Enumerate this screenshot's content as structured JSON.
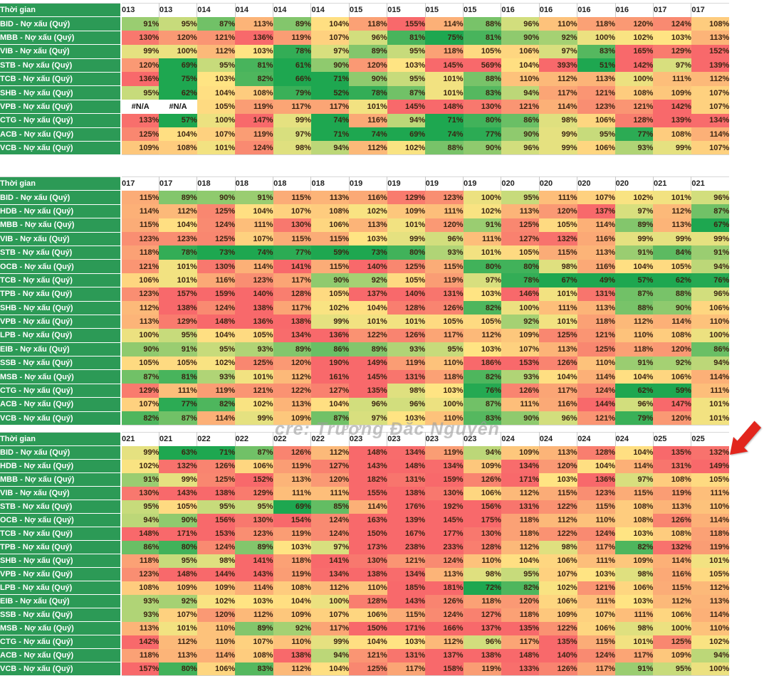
{
  "watermark": {
    "text": "cre: Trương Đắc Nguyên",
    "color": "rgba(158,158,158,0.62)"
  },
  "annotation_arrow": {
    "color": "#e2261d"
  },
  "colors": {
    "label_bg": "#2c9a56",
    "label_text": "#ffffff",
    "value_text": "#3b2412",
    "header_text": "#1f1f1f",
    "na_bg": "#ffffff"
  },
  "heat_scale": {
    "stops": [
      [
        75,
        "#1ea750"
      ],
      [
        88,
        "#78c369"
      ],
      [
        96,
        "#d2de7d"
      ],
      [
        103,
        "#ffe483"
      ],
      [
        113,
        "#fcb478"
      ],
      [
        124,
        "#f98a71"
      ],
      [
        135,
        "#f8696b"
      ]
    ]
  },
  "chart_data": [
    {
      "type": "heatmap",
      "corner_label": "Thời gian",
      "columns": [
        "013",
        "013",
        "014",
        "014",
        "014",
        "014",
        "015",
        "015",
        "015",
        "015",
        "016",
        "016",
        "016",
        "016",
        "017",
        "017"
      ],
      "rows": [
        {
          "label": "BID - Nợ xấu (Quý)",
          "values": [
            "91%",
            "95%",
            "87%",
            "113%",
            "89%",
            "104%",
            "118%",
            "155%",
            "114%",
            "88%",
            "96%",
            "110%",
            "118%",
            "120%",
            "124%",
            "108%"
          ]
        },
        {
          "label": "MBB - Nợ xấu (Quý)",
          "values": [
            "130%",
            "120%",
            "121%",
            "136%",
            "119%",
            "107%",
            "96%",
            "81%",
            "75%",
            "81%",
            "90%",
            "92%",
            "100%",
            "102%",
            "103%",
            "113%"
          ]
        },
        {
          "label": "VIB - Nợ xấu (Quý)",
          "values": [
            "99%",
            "100%",
            "112%",
            "103%",
            "78%",
            "97%",
            "89%",
            "95%",
            "118%",
            "105%",
            "106%",
            "97%",
            "83%",
            "165%",
            "129%",
            "152%"
          ]
        },
        {
          "label": "STB - Nợ xấu (Quý)",
          "values": [
            "120%",
            "69%",
            "95%",
            "81%",
            "61%",
            "90%",
            "120%",
            "103%",
            "145%",
            "569%",
            "104%",
            "393%",
            "51%",
            "142%",
            "97%",
            "139%"
          ]
        },
        {
          "label": "TCB - Nợ xấu (Quý)",
          "values": [
            "136%",
            "75%",
            "103%",
            "82%",
            "66%",
            "71%",
            "90%",
            "95%",
            "101%",
            "88%",
            "110%",
            "112%",
            "113%",
            "100%",
            "111%",
            "112%"
          ]
        },
        {
          "label": "SHB - Nợ xấu (Quý)",
          "values": [
            "95%",
            "62%",
            "104%",
            "108%",
            "79%",
            "52%",
            "78%",
            "87%",
            "101%",
            "83%",
            "94%",
            "117%",
            "121%",
            "108%",
            "109%",
            "107%"
          ]
        },
        {
          "label": "VPB - Nợ xấu (Quý)",
          "values": [
            "#N/A",
            "#N/A",
            "105%",
            "119%",
            "117%",
            "117%",
            "101%",
            "145%",
            "148%",
            "130%",
            "121%",
            "114%",
            "123%",
            "121%",
            "142%",
            "107%"
          ]
        },
        {
          "label": "CTG - Nợ xấu (Quý)",
          "values": [
            "133%",
            "57%",
            "100%",
            "147%",
            "99%",
            "74%",
            "116%",
            "94%",
            "71%",
            "80%",
            "86%",
            "98%",
            "106%",
            "128%",
            "139%",
            "134%"
          ]
        },
        {
          "label": "ACB - Nợ xấu (Quý)",
          "values": [
            "125%",
            "104%",
            "107%",
            "119%",
            "97%",
            "71%",
            "74%",
            "69%",
            "74%",
            "77%",
            "90%",
            "99%",
            "95%",
            "77%",
            "108%",
            "114%"
          ]
        },
        {
          "label": "VCB - Nợ xấu (Quý)",
          "values": [
            "109%",
            "108%",
            "101%",
            "124%",
            "98%",
            "94%",
            "112%",
            "102%",
            "88%",
            "90%",
            "96%",
            "99%",
            "106%",
            "93%",
            "99%",
            "107%"
          ]
        }
      ]
    },
    {
      "type": "heatmap",
      "corner_label": "Thời gian",
      "columns": [
        "017",
        "017",
        "018",
        "018",
        "018",
        "018",
        "019",
        "019",
        "019",
        "019",
        "020",
        "020",
        "020",
        "020",
        "021",
        "021"
      ],
      "rows": [
        {
          "label": "BID - Nợ xấu (Quý)",
          "values": [
            "115%",
            "89%",
            "90%",
            "91%",
            "115%",
            "113%",
            "116%",
            "129%",
            "123%",
            "100%",
            "95%",
            "111%",
            "107%",
            "102%",
            "101%",
            "96%"
          ]
        },
        {
          "label": "HDB - Nợ xấu (Quý)",
          "values": [
            "114%",
            "112%",
            "125%",
            "104%",
            "107%",
            "108%",
            "102%",
            "109%",
            "111%",
            "102%",
            "113%",
            "120%",
            "137%",
            "97%",
            "112%",
            "87%"
          ]
        },
        {
          "label": "MBB - Nợ xấu (Quý)",
          "values": [
            "115%",
            "104%",
            "124%",
            "111%",
            "130%",
            "106%",
            "113%",
            "101%",
            "120%",
            "91%",
            "125%",
            "105%",
            "114%",
            "89%",
            "113%",
            "67%"
          ]
        },
        {
          "label": "VIB - Nợ xấu (Quý)",
          "values": [
            "123%",
            "123%",
            "125%",
            "107%",
            "115%",
            "115%",
            "103%",
            "99%",
            "96%",
            "111%",
            "127%",
            "132%",
            "116%",
            "99%",
            "99%",
            "99%"
          ]
        },
        {
          "label": "STB - Nợ xấu (Quý)",
          "values": [
            "118%",
            "78%",
            "73%",
            "74%",
            "77%",
            "59%",
            "73%",
            "80%",
            "93%",
            "101%",
            "105%",
            "115%",
            "113%",
            "91%",
            "84%",
            "91%"
          ]
        },
        {
          "label": "OCB - Nợ xấu (Quý)",
          "values": [
            "121%",
            "101%",
            "130%",
            "114%",
            "141%",
            "115%",
            "140%",
            "125%",
            "115%",
            "80%",
            "80%",
            "98%",
            "116%",
            "104%",
            "105%",
            "94%"
          ]
        },
        {
          "label": "TCB - Nợ xấu (Quý)",
          "values": [
            "106%",
            "101%",
            "116%",
            "123%",
            "117%",
            "90%",
            "92%",
            "105%",
            "119%",
            "97%",
            "78%",
            "67%",
            "49%",
            "57%",
            "62%",
            "76%"
          ]
        },
        {
          "label": "TPB - Nợ xấu (Quý)",
          "values": [
            "123%",
            "157%",
            "159%",
            "140%",
            "128%",
            "105%",
            "137%",
            "140%",
            "131%",
            "103%",
            "146%",
            "101%",
            "131%",
            "87%",
            "88%",
            "96%"
          ]
        },
        {
          "label": "SHB - Nợ xấu (Quý)",
          "values": [
            "112%",
            "138%",
            "124%",
            "138%",
            "117%",
            "102%",
            "104%",
            "128%",
            "126%",
            "82%",
            "100%",
            "111%",
            "113%",
            "88%",
            "90%",
            "106%"
          ]
        },
        {
          "label": "VPB - Nợ xấu (Quý)",
          "values": [
            "113%",
            "129%",
            "148%",
            "136%",
            "138%",
            "99%",
            "101%",
            "101%",
            "105%",
            "105%",
            "92%",
            "101%",
            "118%",
            "112%",
            "114%",
            "110%"
          ]
        },
        {
          "label": "LPB - Nợ xấu (Quý)",
          "values": [
            "100%",
            "95%",
            "104%",
            "105%",
            "134%",
            "136%",
            "122%",
            "126%",
            "117%",
            "112%",
            "109%",
            "125%",
            "121%",
            "110%",
            "108%",
            "100%"
          ]
        },
        {
          "label": "EIB - Nợ xấu (Quý)",
          "values": [
            "90%",
            "91%",
            "95%",
            "93%",
            "89%",
            "86%",
            "89%",
            "93%",
            "95%",
            "103%",
            "107%",
            "113%",
            "125%",
            "118%",
            "120%",
            "86%"
          ]
        },
        {
          "label": "SSB - Nợ xấu (Quý)",
          "values": [
            "105%",
            "105%",
            "102%",
            "125%",
            "120%",
            "190%",
            "149%",
            "119%",
            "110%",
            "186%",
            "153%",
            "126%",
            "110%",
            "91%",
            "92%",
            "94%"
          ]
        },
        {
          "label": "MSB - Nợ xấu (Quý)",
          "values": [
            "87%",
            "81%",
            "93%",
            "101%",
            "112%",
            "161%",
            "145%",
            "131%",
            "118%",
            "82%",
            "93%",
            "104%",
            "114%",
            "104%",
            "106%",
            "114%"
          ]
        },
        {
          "label": "CTG - Nợ xấu (Quý)",
          "values": [
            "129%",
            "111%",
            "119%",
            "121%",
            "122%",
            "127%",
            "135%",
            "98%",
            "103%",
            "76%",
            "126%",
            "117%",
            "124%",
            "62%",
            "59%",
            "111%"
          ]
        },
        {
          "label": "ACB - Nợ xấu (Quý)",
          "values": [
            "107%",
            "77%",
            "82%",
            "102%",
            "113%",
            "104%",
            "96%",
            "96%",
            "100%",
            "87%",
            "111%",
            "116%",
            "144%",
            "96%",
            "147%",
            "101%"
          ]
        },
        {
          "label": "VCB - Nợ xấu (Quý)",
          "values": [
            "82%",
            "87%",
            "114%",
            "99%",
            "109%",
            "87%",
            "97%",
            "103%",
            "110%",
            "83%",
            "90%",
            "96%",
            "121%",
            "79%",
            "120%",
            "101%"
          ]
        }
      ]
    },
    {
      "type": "heatmap",
      "corner_label": "Thời gian",
      "columns": [
        "021",
        "021",
        "022",
        "022",
        "022",
        "022",
        "023",
        "023",
        "023",
        "023",
        "024",
        "024",
        "024",
        "024",
        "025",
        "025"
      ],
      "rows": [
        {
          "label": "BID - Nợ xấu (Quý)",
          "values": [
            "99%",
            "63%",
            "71%",
            "87%",
            "126%",
            "112%",
            "148%",
            "134%",
            "119%",
            "94%",
            "109%",
            "113%",
            "128%",
            "104%",
            "135%",
            "132%"
          ]
        },
        {
          "label": "HDB - Nợ xấu (Quý)",
          "values": [
            "102%",
            "132%",
            "126%",
            "106%",
            "119%",
            "127%",
            "143%",
            "148%",
            "134%",
            "109%",
            "134%",
            "120%",
            "104%",
            "114%",
            "131%",
            "149%"
          ]
        },
        {
          "label": "MBB - Nợ xấu (Quý)",
          "values": [
            "91%",
            "99%",
            "125%",
            "152%",
            "113%",
            "120%",
            "182%",
            "131%",
            "159%",
            "126%",
            "171%",
            "103%",
            "136%",
            "97%",
            "108%",
            "105%"
          ]
        },
        {
          "label": "VIB - Nợ xấu (Quý)",
          "values": [
            "130%",
            "143%",
            "138%",
            "129%",
            "111%",
            "111%",
            "155%",
            "138%",
            "130%",
            "106%",
            "112%",
            "115%",
            "123%",
            "115%",
            "119%",
            "111%"
          ]
        },
        {
          "label": "STB - Nợ xấu (Quý)",
          "values": [
            "95%",
            "105%",
            "95%",
            "95%",
            "69%",
            "85%",
            "114%",
            "176%",
            "192%",
            "156%",
            "131%",
            "122%",
            "115%",
            "108%",
            "113%",
            "110%"
          ]
        },
        {
          "label": "OCB - Nợ xấu (Quý)",
          "values": [
            "94%",
            "90%",
            "156%",
            "130%",
            "154%",
            "124%",
            "163%",
            "139%",
            "145%",
            "175%",
            "118%",
            "112%",
            "110%",
            "108%",
            "126%",
            "114%"
          ]
        },
        {
          "label": "TCB - Nợ xấu (Quý)",
          "values": [
            "148%",
            "171%",
            "153%",
            "123%",
            "119%",
            "124%",
            "150%",
            "167%",
            "177%",
            "130%",
            "118%",
            "122%",
            "124%",
            "103%",
            "108%",
            "118%"
          ]
        },
        {
          "label": "TPB - Nợ xấu (Quý)",
          "values": [
            "86%",
            "80%",
            "124%",
            "89%",
            "103%",
            "97%",
            "173%",
            "238%",
            "233%",
            "128%",
            "112%",
            "98%",
            "117%",
            "82%",
            "132%",
            "119%"
          ]
        },
        {
          "label": "SHB - Nợ xấu (Quý)",
          "values": [
            "118%",
            "95%",
            "98%",
            "141%",
            "118%",
            "141%",
            "130%",
            "121%",
            "124%",
            "110%",
            "104%",
            "106%",
            "111%",
            "109%",
            "114%",
            "101%"
          ]
        },
        {
          "label": "VPB - Nợ xấu (Quý)",
          "values": [
            "123%",
            "148%",
            "144%",
            "143%",
            "119%",
            "134%",
            "138%",
            "134%",
            "113%",
            "98%",
            "95%",
            "107%",
            "103%",
            "98%",
            "116%",
            "105%"
          ]
        },
        {
          "label": "LPB - Nợ xấu (Quý)",
          "values": [
            "108%",
            "109%",
            "109%",
            "114%",
            "108%",
            "112%",
            "110%",
            "185%",
            "181%",
            "72%",
            "82%",
            "102%",
            "121%",
            "106%",
            "115%",
            "112%"
          ]
        },
        {
          "label": "EIB - Nợ xấu (Quý)",
          "values": [
            "93%",
            "92%",
            "102%",
            "103%",
            "104%",
            "100%",
            "128%",
            "143%",
            "126%",
            "118%",
            "120%",
            "106%",
            "111%",
            "103%",
            "112%",
            "113%"
          ]
        },
        {
          "label": "SSB - Nợ xấu (Quý)",
          "values": [
            "93%",
            "107%",
            "120%",
            "112%",
            "109%",
            "107%",
            "106%",
            "115%",
            "124%",
            "127%",
            "118%",
            "109%",
            "107%",
            "111%",
            "106%",
            "114%"
          ]
        },
        {
          "label": "MSB - Nợ xấu (Quý)",
          "values": [
            "113%",
            "101%",
            "110%",
            "89%",
            "92%",
            "117%",
            "150%",
            "171%",
            "166%",
            "137%",
            "135%",
            "122%",
            "106%",
            "98%",
            "100%",
            "110%"
          ]
        },
        {
          "label": "CTG - Nợ xấu (Quý)",
          "values": [
            "142%",
            "112%",
            "110%",
            "107%",
            "110%",
            "99%",
            "104%",
            "103%",
            "112%",
            "96%",
            "117%",
            "135%",
            "115%",
            "101%",
            "125%",
            "102%"
          ]
        },
        {
          "label": "ACB - Nợ xấu (Quý)",
          "values": [
            "118%",
            "113%",
            "114%",
            "108%",
            "138%",
            "94%",
            "121%",
            "131%",
            "137%",
            "138%",
            "148%",
            "140%",
            "124%",
            "117%",
            "109%",
            "94%"
          ]
        },
        {
          "label": "VCB - Nợ xấu (Quý)",
          "values": [
            "157%",
            "80%",
            "106%",
            "83%",
            "112%",
            "104%",
            "125%",
            "117%",
            "158%",
            "119%",
            "133%",
            "126%",
            "117%",
            "91%",
            "95%",
            "100%"
          ]
        }
      ]
    }
  ]
}
